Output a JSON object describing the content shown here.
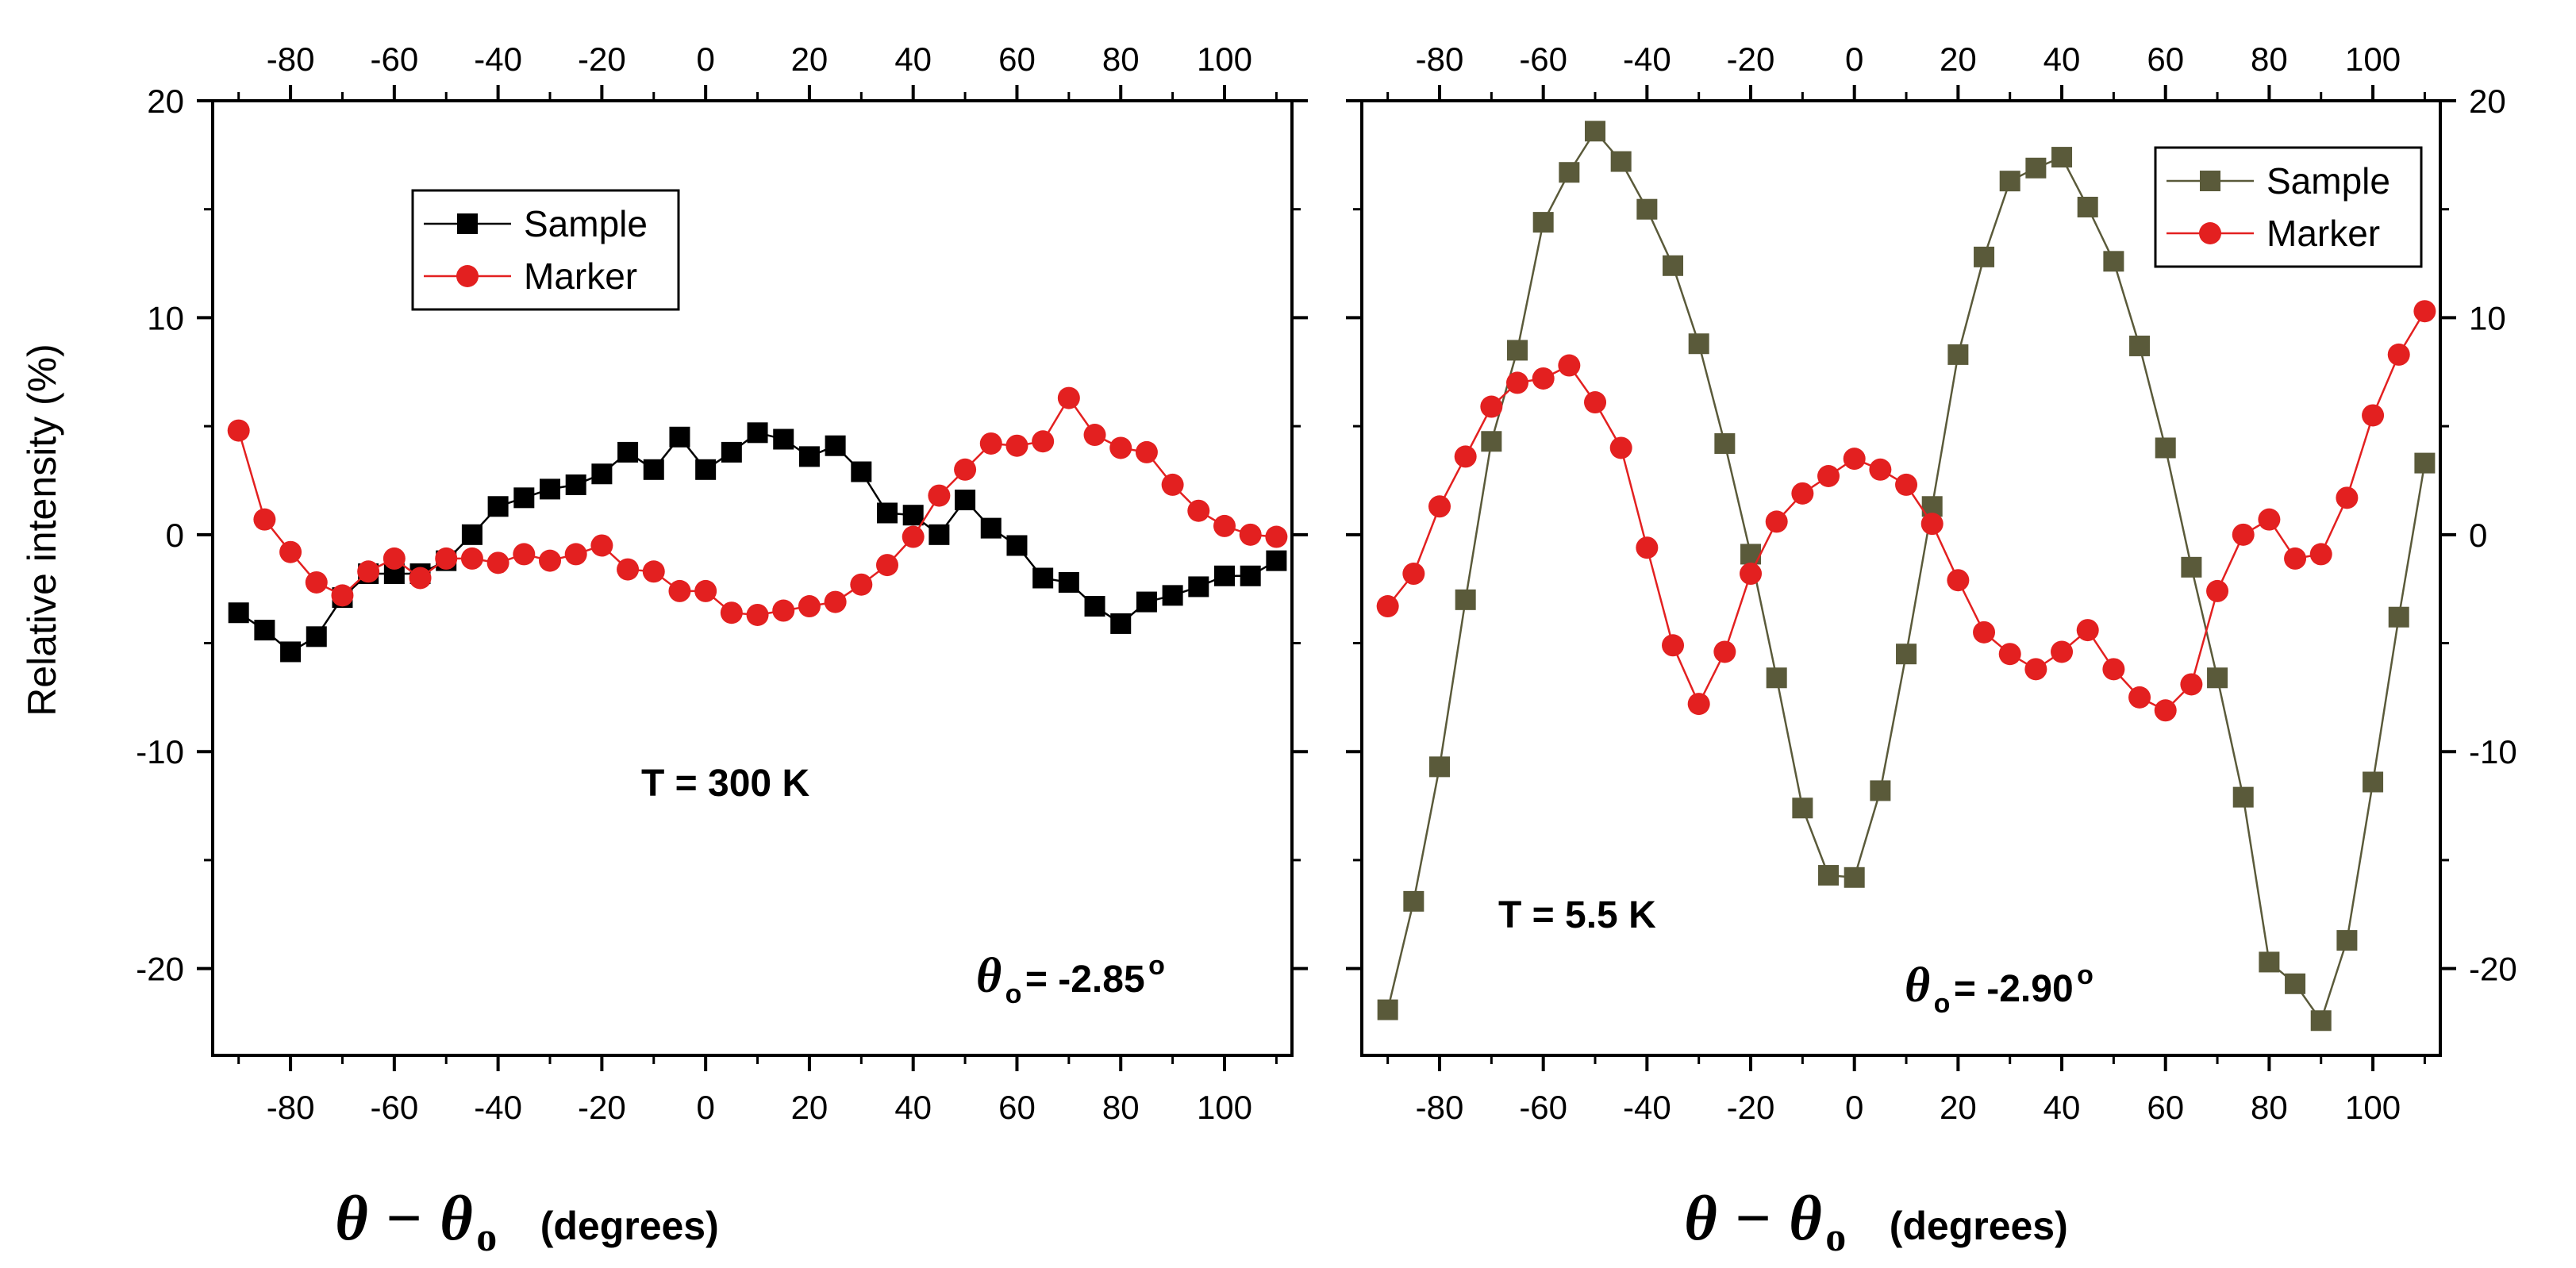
{
  "colors": {
    "sample_left": "#000000",
    "sample_right": "#5a5a3a",
    "marker": "#e32020",
    "marker_line": "#e32020",
    "axes": "#000000"
  },
  "labels": {
    "ylabel": "Relative intensity (%)",
    "x_theta": "θ",
    "x_minus": "−",
    "x_theta0": "θ",
    "x_sub": "o",
    "x_unit": "(degrees)",
    "ann_left_T": "T = 300 K",
    "ann_left_theta": "θ",
    "ann_left_sub": "o",
    "ann_left_val": " = -2.85",
    "ann_left_sup": "o",
    "ann_right_T": "T = 5.5 K",
    "ann_right_theta": "θ",
    "ann_right_sub": "o",
    "ann_right_val": " = -2.90",
    "ann_right_sup": "o"
  },
  "chart_data": [
    {
      "type": "line",
      "panel": "left",
      "xlabel": "θ − θo (degrees)",
      "ylabel": "Relative intensity (%)",
      "xlim": [
        -95,
        113
      ],
      "ylim": [
        -24,
        20
      ],
      "xticks": [
        -80,
        -60,
        -40,
        -20,
        0,
        20,
        40,
        60,
        80,
        100
      ],
      "yticks": [
        -20,
        -10,
        0,
        10,
        20
      ],
      "grid": false,
      "legend_position": "top-left",
      "annotations": [
        "T = 300 K",
        "θo = -2.85o"
      ],
      "series": [
        {
          "name": "Sample",
          "color": "#000000",
          "marker": "square",
          "x": [
            -90,
            -85,
            -80,
            -75,
            -70,
            -65,
            -60,
            -55,
            -50,
            -45,
            -40,
            -35,
            -30,
            -25,
            -20,
            -15,
            -10,
            -5,
            0,
            5,
            10,
            15,
            20,
            25,
            30,
            35,
            40,
            45,
            50,
            55,
            60,
            65,
            70,
            75,
            80,
            85,
            90,
            95,
            100,
            105,
            110
          ],
          "y": [
            -3.6,
            -4.4,
            -5.4,
            -4.7,
            -2.9,
            -1.8,
            -1.8,
            -1.8,
            -1.2,
            0.0,
            1.3,
            1.7,
            2.1,
            2.3,
            2.8,
            3.8,
            3.0,
            4.5,
            3.0,
            3.8,
            4.7,
            4.4,
            3.6,
            4.1,
            2.9,
            1.0,
            0.9,
            0.0,
            1.6,
            0.3,
            -0.5,
            -2.0,
            -2.2,
            -3.3,
            -4.1,
            -3.1,
            -2.8,
            -2.4,
            -1.9,
            -1.9,
            -1.2
          ]
        },
        {
          "name": "Marker",
          "color": "#e32020",
          "marker": "circle",
          "x": [
            -90,
            -85,
            -80,
            -75,
            -70,
            -65,
            -60,
            -55,
            -50,
            -45,
            -40,
            -35,
            -30,
            -25,
            -20,
            -15,
            -10,
            -5,
            0,
            5,
            10,
            15,
            20,
            25,
            30,
            35,
            40,
            45,
            50,
            55,
            60,
            65,
            70,
            75,
            80,
            85,
            90,
            95,
            100,
            105,
            110
          ],
          "y": [
            4.8,
            0.7,
            -0.8,
            -2.2,
            -2.8,
            -1.7,
            -1.1,
            -2.0,
            -1.1,
            -1.1,
            -1.3,
            -0.9,
            -1.2,
            -0.9,
            -0.5,
            -1.6,
            -1.7,
            -2.6,
            -2.6,
            -3.6,
            -3.7,
            -3.5,
            -3.3,
            -3.1,
            -2.3,
            -1.4,
            -0.1,
            1.8,
            3.0,
            4.2,
            4.1,
            4.3,
            6.3,
            4.6,
            4.0,
            3.8,
            2.3,
            1.1,
            0.4,
            0.0,
            -0.1
          ]
        }
      ]
    },
    {
      "type": "line",
      "panel": "right",
      "xlabel": "θ − θo (degrees)",
      "xlim": [
        -95,
        113
      ],
      "ylim": [
        -24,
        20
      ],
      "xticks": [
        -80,
        -60,
        -40,
        -20,
        0,
        20,
        40,
        60,
        80,
        100
      ],
      "yticks": [
        -20,
        -10,
        0,
        10,
        20
      ],
      "grid": false,
      "legend_position": "top-right",
      "annotations": [
        "T = 5.5 K",
        "θo = -2.90o"
      ],
      "series": [
        {
          "name": "Sample",
          "color": "#5a5a3a",
          "marker": "square",
          "x": [
            -90,
            -85,
            -80,
            -75,
            -70,
            -65,
            -60,
            -55,
            -50,
            -45,
            -40,
            -35,
            -30,
            -25,
            -20,
            -15,
            -10,
            -5,
            0,
            5,
            10,
            15,
            20,
            25,
            30,
            35,
            40,
            45,
            50,
            55,
            60,
            65,
            70,
            75,
            80,
            85,
            90,
            95,
            100,
            105,
            110
          ],
          "y": [
            -21.9,
            -16.9,
            -10.7,
            -3.0,
            4.3,
            8.5,
            14.4,
            16.7,
            18.6,
            17.2,
            15.0,
            12.4,
            8.8,
            4.2,
            -0.9,
            -6.6,
            -12.6,
            -15.7,
            -15.8,
            -11.8,
            -5.5,
            1.3,
            8.3,
            12.8,
            16.3,
            16.9,
            17.4,
            15.1,
            12.6,
            8.7,
            4.0,
            -1.5,
            -6.6,
            -12.1,
            -19.7,
            -20.7,
            -22.4,
            -18.7,
            -11.4,
            -3.8,
            3.3
          ]
        },
        {
          "name": "Marker",
          "color": "#e32020",
          "marker": "circle",
          "x": [
            -90,
            -85,
            -80,
            -75,
            -70,
            -65,
            -60,
            -55,
            -50,
            -45,
            -40,
            -35,
            -30,
            -25,
            -20,
            -15,
            -10,
            -5,
            0,
            5,
            10,
            15,
            20,
            25,
            30,
            35,
            40,
            45,
            50,
            55,
            60,
            65,
            70,
            75,
            80,
            85,
            90,
            95,
            100,
            105,
            110
          ],
          "y": [
            -3.3,
            -1.8,
            1.3,
            3.6,
            5.9,
            7.0,
            7.2,
            7.8,
            6.1,
            4.0,
            -0.6,
            -5.1,
            -7.8,
            -5.4,
            -1.8,
            0.6,
            1.9,
            2.7,
            3.5,
            3.0,
            2.3,
            0.5,
            -2.1,
            -4.5,
            -5.5,
            -6.2,
            -5.4,
            -4.4,
            -6.2,
            -7.5,
            -8.1,
            -6.9,
            -2.6,
            0.0,
            0.7,
            -1.1,
            -0.9,
            1.7,
            5.5,
            8.3,
            10.3
          ]
        }
      ]
    }
  ]
}
